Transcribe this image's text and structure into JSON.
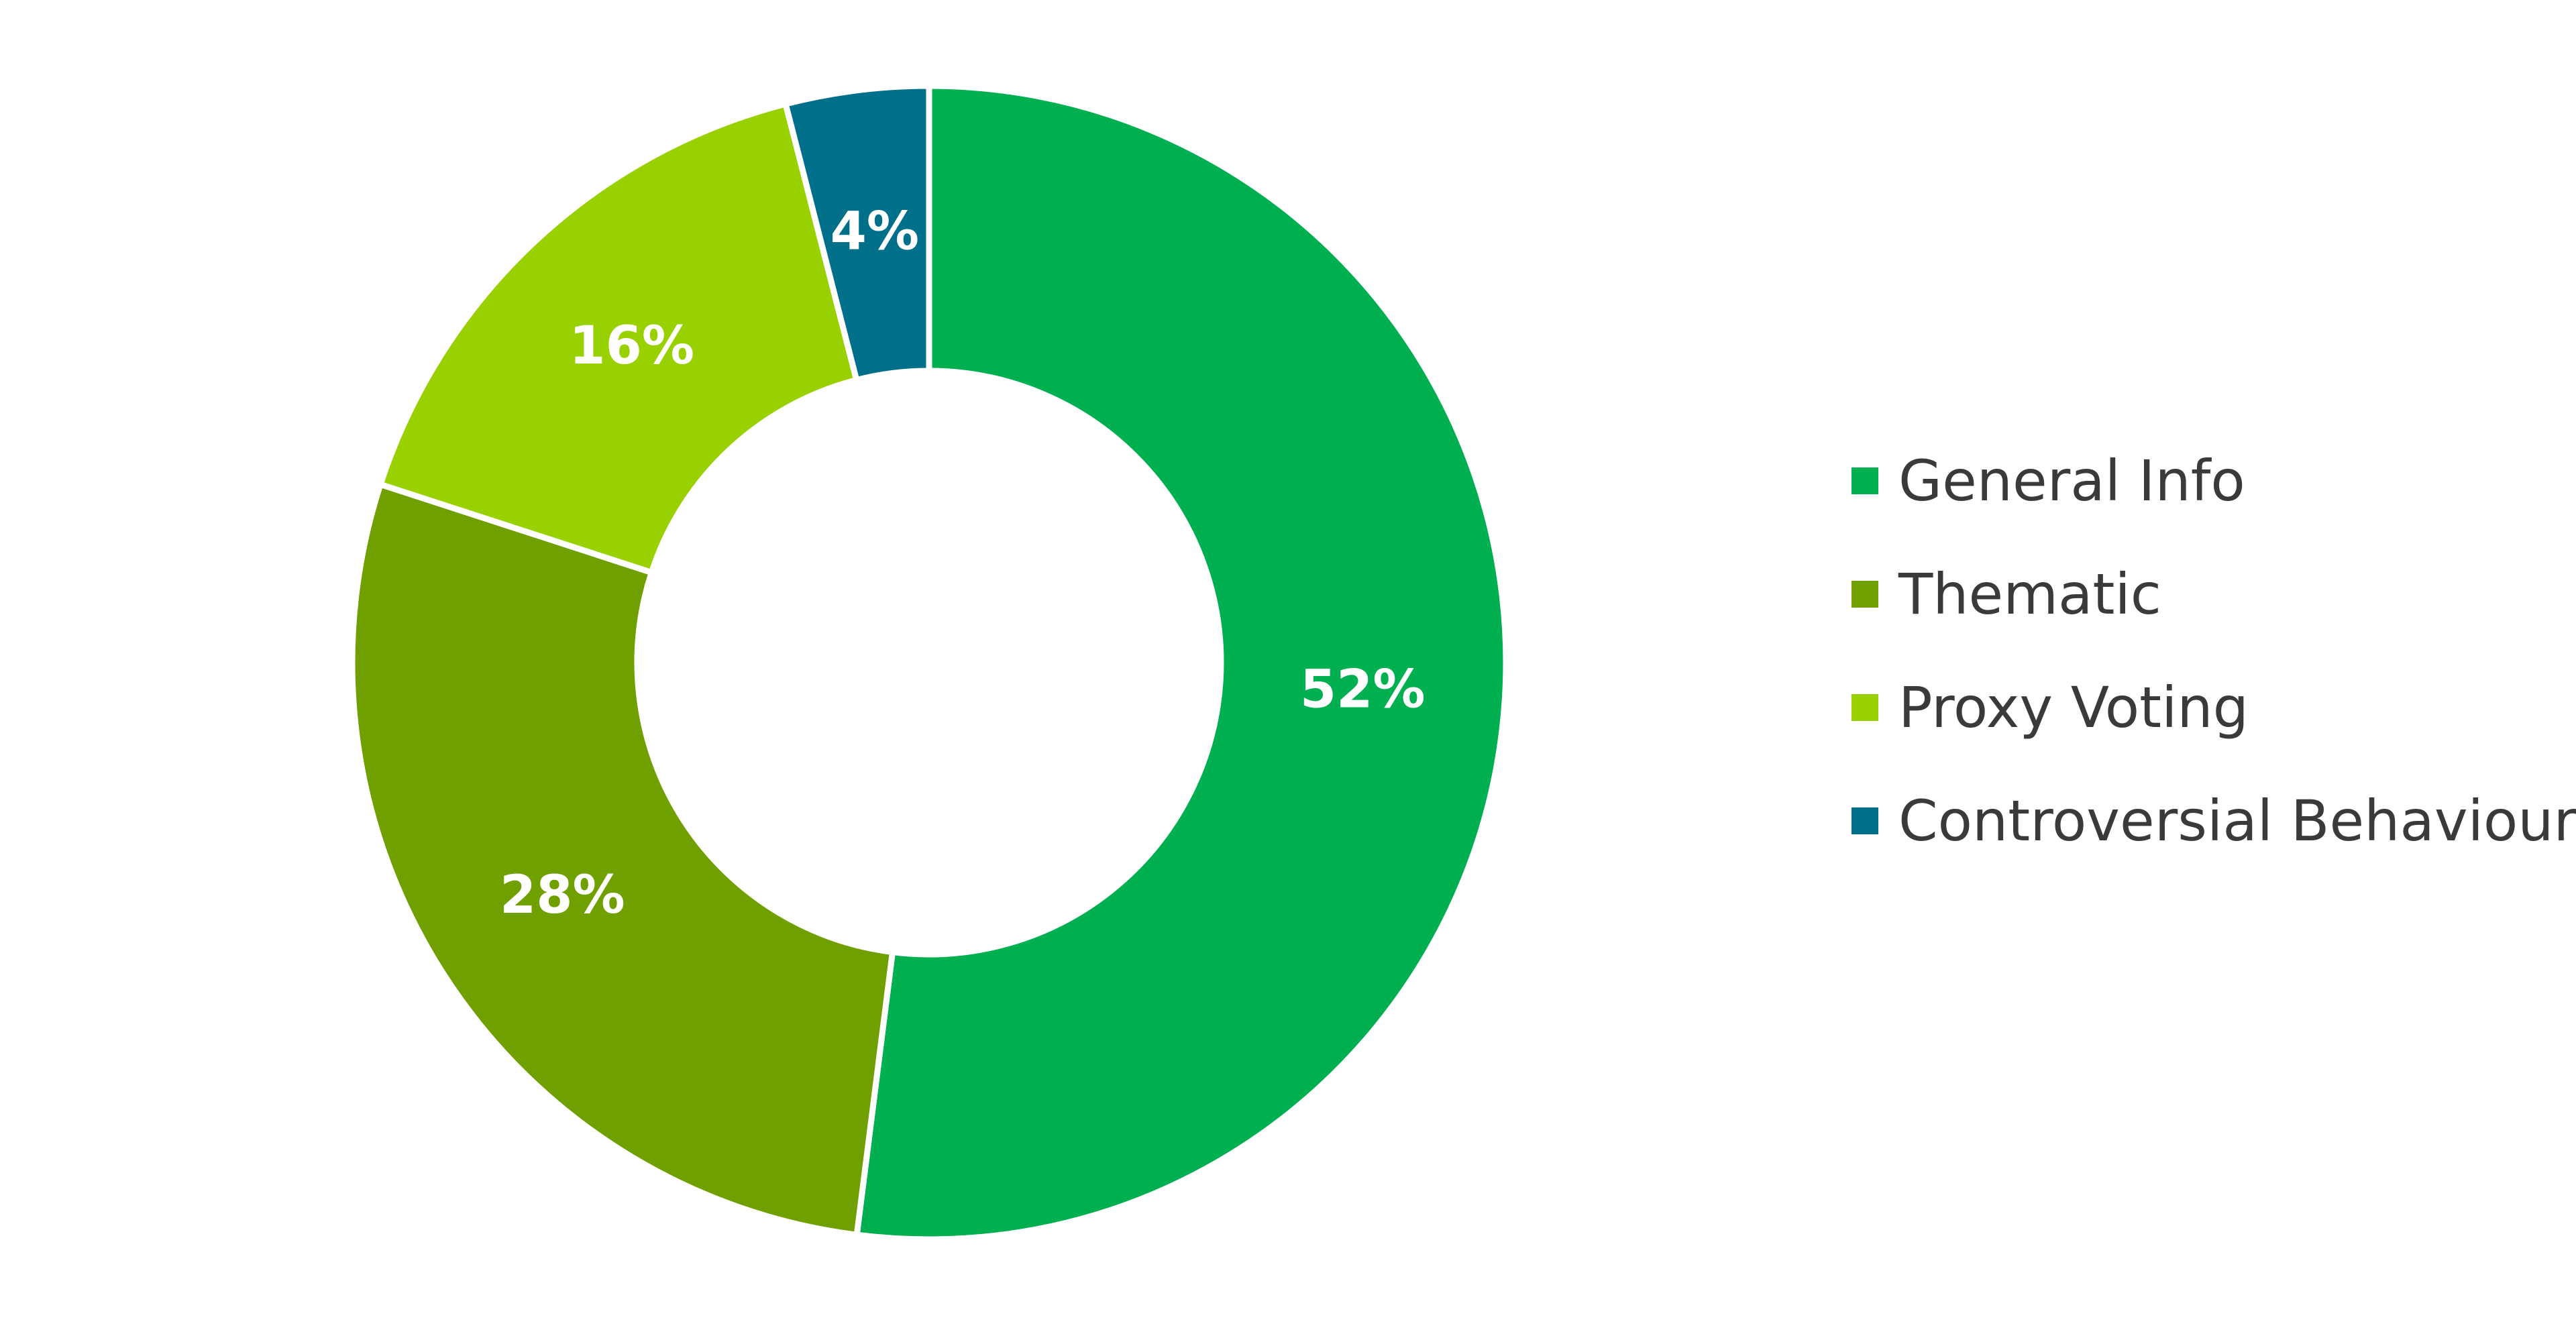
{
  "chart_data": {
    "type": "pie",
    "variant": "donut",
    "title": "",
    "categories": [
      "General Info",
      "Thematic",
      "Proxy Voting",
      "Controversial Behaviour"
    ],
    "values": [
      52,
      28,
      16,
      4
    ],
    "labels": [
      "52%",
      "28%",
      "16%",
      "4%"
    ],
    "unit": "%",
    "colors": [
      "#00b050",
      "#70a000",
      "#99d100",
      "#00708a"
    ],
    "legend_position": "right",
    "start_angle": "top",
    "direction": "clockwise"
  }
}
